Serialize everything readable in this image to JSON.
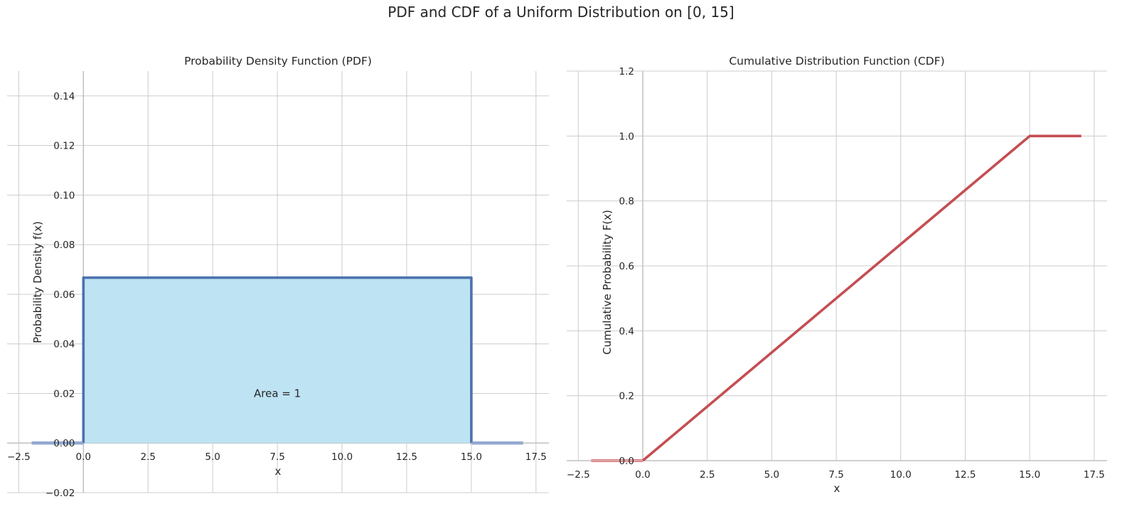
{
  "figure": {
    "title": "PDF and CDF of a Uniform Distribution on [0, 15]"
  },
  "chart_data": [
    {
      "type": "line",
      "title": "Probability Density Function (PDF)",
      "xlabel": "x",
      "ylabel": "Probability Density f(x)",
      "xlim": [
        -2.95,
        18.0
      ],
      "ylim": [
        -0.02,
        0.15
      ],
      "xticks": [
        -2.5,
        0.0,
        2.5,
        5.0,
        7.5,
        10.0,
        12.5,
        15.0,
        17.5
      ],
      "xtick_labels": [
        "−2.5",
        "0.0",
        "2.5",
        "5.0",
        "7.5",
        "10.0",
        "12.5",
        "15.0",
        "17.5"
      ],
      "yticks": [
        -0.02,
        0.0,
        0.02,
        0.04,
        0.06,
        0.08,
        0.1,
        0.12,
        0.14
      ],
      "ytick_labels": [
        "−0.02",
        "0.00",
        "0.02",
        "0.04",
        "0.06",
        "0.08",
        "0.10",
        "0.12",
        "0.14"
      ],
      "series": [
        {
          "x": [
            0,
            0,
            15,
            15
          ],
          "y": [
            0,
            0.0667,
            0.0667,
            0
          ],
          "color": "#4c72b0",
          "fill": "#bee3f3"
        },
        {
          "x": [
            -2,
            0
          ],
          "y": [
            0,
            0
          ],
          "color": "#4c72b0"
        },
        {
          "x": [
            15,
            17
          ],
          "y": [
            0,
            0
          ],
          "color": "#4c72b0"
        }
      ],
      "annotations": [
        {
          "text": "Area = 1",
          "x": 7.5,
          "y": 0.02
        }
      ],
      "grid": true
    },
    {
      "type": "line",
      "title": "Cumulative Distribution Function (CDF)",
      "xlabel": "x",
      "ylabel": "Cumulative Probability F(x)",
      "xlim": [
        -2.95,
        18.0
      ],
      "ylim": [
        0.0,
        1.2
      ],
      "xticks": [
        -2.5,
        0.0,
        2.5,
        5.0,
        7.5,
        10.0,
        12.5,
        15.0,
        17.5
      ],
      "xtick_labels": [
        "−2.5",
        "0.0",
        "2.5",
        "5.0",
        "7.5",
        "10.0",
        "12.5",
        "15.0",
        "17.5"
      ],
      "yticks": [
        0.0,
        0.2,
        0.4,
        0.6,
        0.8,
        1.0,
        1.2
      ],
      "ytick_labels": [
        "0.0",
        "0.2",
        "0.4",
        "0.6",
        "0.8",
        "1.0",
        "1.2"
      ],
      "series": [
        {
          "x": [
            0,
            15,
            17
          ],
          "y": [
            0,
            1,
            1
          ],
          "color": "#c44e52"
        },
        {
          "x": [
            -2,
            0
          ],
          "y": [
            0,
            0
          ],
          "color": "#c44e52"
        }
      ],
      "grid": true
    }
  ]
}
